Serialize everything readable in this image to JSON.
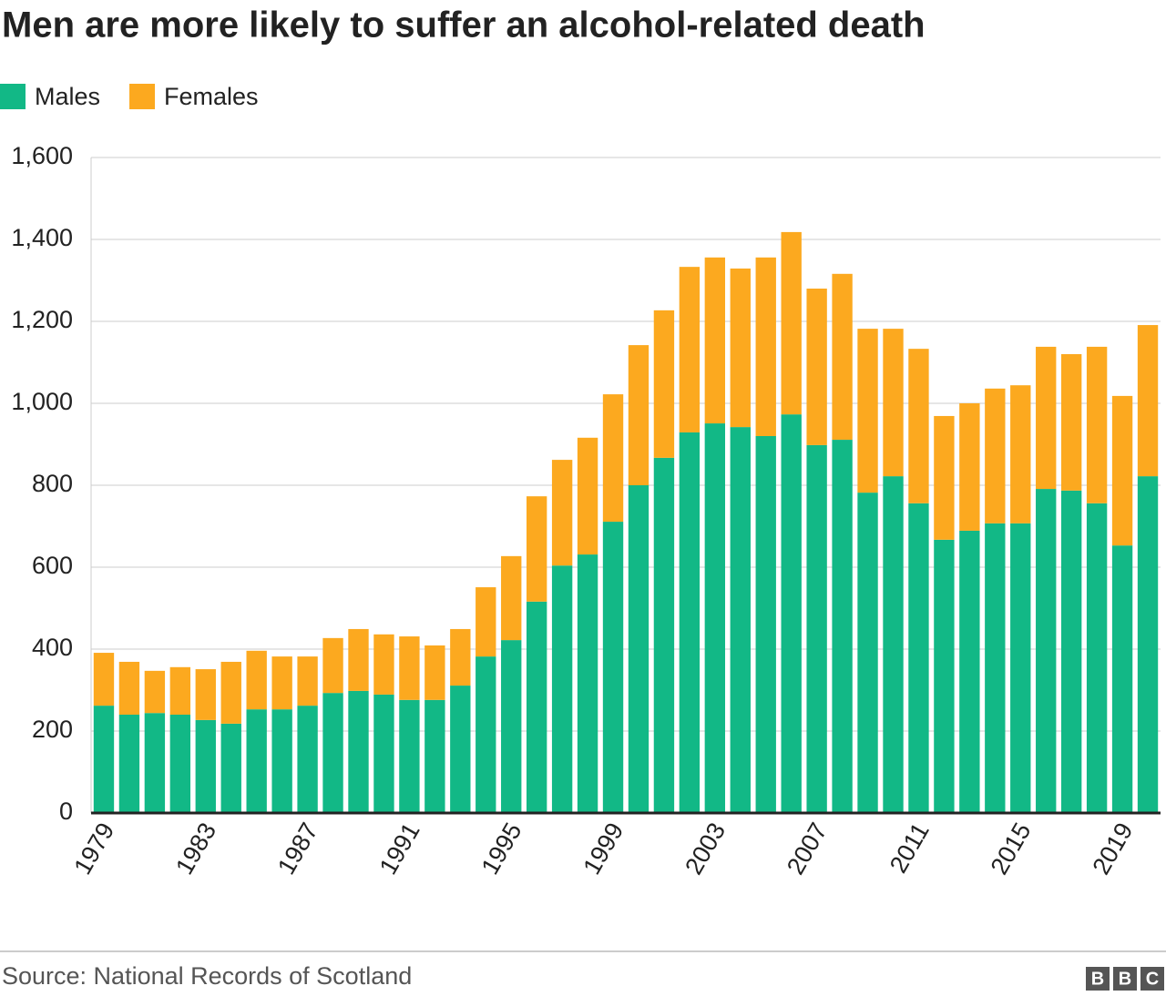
{
  "chart_data": {
    "type": "stacked-bar",
    "title": "Men are more likely to suffer an alcohol-related death",
    "source": "Source: National Records of Scotland",
    "logo": [
      "B",
      "B",
      "C"
    ],
    "legend": "top-left",
    "grid": true,
    "categories": [
      "1979",
      null,
      null,
      null,
      "1983",
      null,
      null,
      null,
      "1987",
      null,
      null,
      null,
      "1991",
      null,
      null,
      null,
      "1995",
      null,
      null,
      null,
      "1999",
      null,
      null,
      null,
      "2003",
      null,
      null,
      null,
      "2007",
      null,
      null,
      null,
      "2011",
      null,
      null,
      null,
      "2015",
      null,
      null,
      null,
      "2019",
      null
    ],
    "series": [
      {
        "name": "Males",
        "color": "#12b886",
        "values": [
          262,
          240,
          244,
          240,
          227,
          218,
          253,
          253,
          262,
          293,
          298,
          289,
          276,
          276,
          311,
          382,
          422,
          516,
          604,
          631,
          711,
          800,
          867,
          929,
          951,
          942,
          920,
          973,
          898,
          911,
          782,
          822,
          756,
          667,
          689,
          707,
          707,
          791,
          787,
          756,
          653,
          822
        ]
      },
      {
        "name": "Females",
        "color": "#fca91f",
        "values": [
          129,
          129,
          103,
          116,
          124,
          151,
          143,
          129,
          120,
          134,
          151,
          147,
          155,
          133,
          138,
          169,
          205,
          257,
          258,
          285,
          311,
          342,
          360,
          404,
          405,
          387,
          436,
          445,
          382,
          405,
          400,
          360,
          377,
          302,
          311,
          329,
          337,
          347,
          333,
          382,
          365,
          369
        ]
      }
    ],
    "ylim": [
      0,
      1600
    ],
    "yticks": [
      0,
      200,
      400,
      600,
      800,
      {
        "value": 1000,
        "label": "1,000"
      },
      {
        "value": 1200,
        "label": "1,200"
      },
      {
        "value": 1400,
        "label": "1,400"
      },
      {
        "value": 1600,
        "label": "1,600"
      }
    ]
  }
}
